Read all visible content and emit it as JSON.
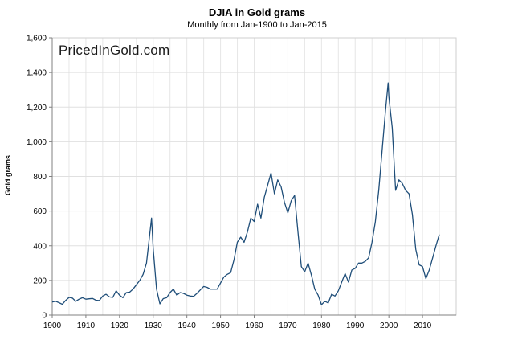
{
  "chart_data": {
    "type": "line",
    "title": "DJIA in Gold grams",
    "subtitle": "Monthly from Jan-1900 to Jan-2015",
    "xlabel": "",
    "ylabel": "Gold grams",
    "watermark": "PricedInGold.com",
    "xlim": [
      1900,
      2020
    ],
    "ylim": [
      0,
      1600
    ],
    "x_ticks": [
      1900,
      1910,
      1920,
      1930,
      1940,
      1950,
      1960,
      1970,
      1980,
      1990,
      2000,
      2010
    ],
    "x_tick_labels": [
      "1900",
      "1910",
      "1920",
      "1930",
      "1940",
      "1950",
      "1960",
      "1970",
      "1980",
      "1990",
      "2000",
      "2010"
    ],
    "y_ticks": [
      0,
      200,
      400,
      600,
      800,
      1000,
      1200,
      1400,
      1600
    ],
    "y_tick_labels": [
      "0",
      "200",
      "400",
      "600",
      "800",
      "1,000",
      "1,200",
      "1,400",
      "1,600"
    ],
    "grid": true,
    "series": [
      {
        "name": "DJIA in Gold grams",
        "color": "#1f4e79",
        "x": [
          1900,
          1901,
          1902,
          1903,
          1904,
          1905,
          1906,
          1907,
          1908,
          1909,
          1910,
          1911,
          1912,
          1913,
          1914,
          1915,
          1916,
          1917,
          1918,
          1919,
          1920,
          1921,
          1922,
          1923,
          1924,
          1925,
          1926,
          1927,
          1928,
          1929.5,
          1930,
          1931,
          1932,
          1933,
          1934,
          1935,
          1936,
          1937,
          1938,
          1939,
          1940,
          1941,
          1942,
          1943,
          1944,
          1945,
          1946,
          1947,
          1948,
          1949,
          1950,
          1951,
          1952,
          1953,
          1954,
          1955,
          1956,
          1957,
          1958,
          1959,
          1960,
          1961,
          1962,
          1963,
          1964,
          1965,
          1966,
          1967,
          1968,
          1969,
          1970,
          1971,
          1972,
          1973,
          1974,
          1975,
          1976,
          1977,
          1978,
          1979,
          1980,
          1981,
          1982,
          1983,
          1984,
          1985,
          1986,
          1987,
          1988,
          1989,
          1990,
          1991,
          1992,
          1993,
          1994,
          1995,
          1996,
          1997,
          1998,
          1999,
          1999.8,
          2000,
          2001,
          2002,
          2003,
          2004,
          2005,
          2006,
          2007,
          2008,
          2009,
          2010,
          2011,
          2012,
          2013,
          2014,
          2015
        ],
        "values": [
          75,
          80,
          72,
          62,
          85,
          102,
          98,
          80,
          92,
          100,
          92,
          94,
          96,
          86,
          84,
          110,
          120,
          105,
          102,
          140,
          115,
          100,
          130,
          132,
          150,
          175,
          200,
          235,
          300,
          560,
          380,
          150,
          65,
          95,
          100,
          130,
          150,
          115,
          130,
          125,
          115,
          110,
          108,
          125,
          145,
          165,
          160,
          150,
          150,
          150,
          185,
          220,
          235,
          245,
          320,
          420,
          450,
          420,
          480,
          560,
          540,
          640,
          560,
          680,
          750,
          820,
          700,
          780,
          740,
          650,
          590,
          660,
          690,
          480,
          280,
          250,
          300,
          230,
          150,
          115,
          60,
          80,
          70,
          120,
          110,
          140,
          190,
          240,
          190,
          260,
          270,
          300,
          300,
          310,
          330,
          420,
          540,
          720,
          950,
          1180,
          1340,
          1260,
          1080,
          720,
          780,
          760,
          720,
          700,
          580,
          380,
          290,
          280,
          210,
          260,
          330,
          400,
          465
        ]
      }
    ]
  }
}
